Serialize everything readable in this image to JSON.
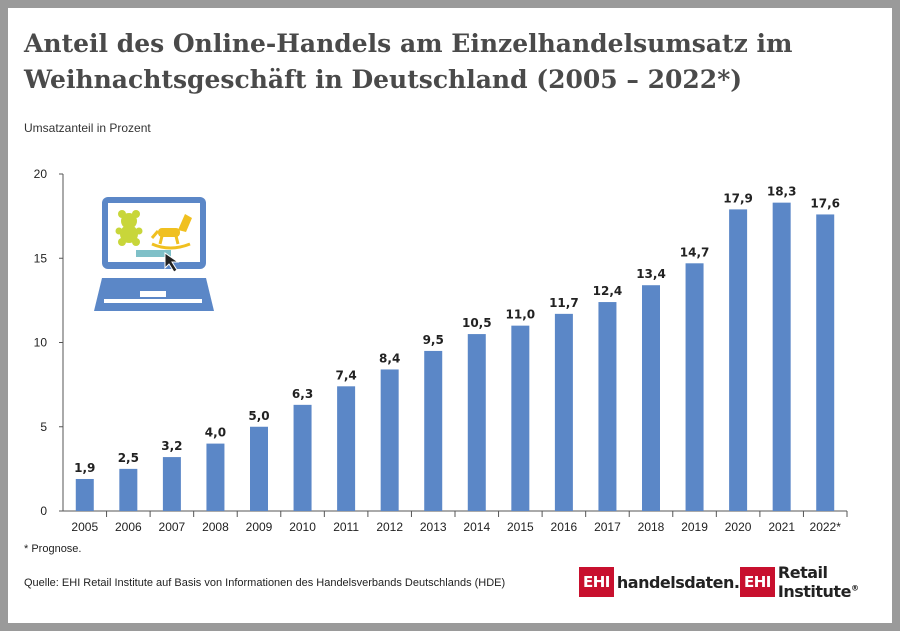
{
  "header": {
    "title": "Anteil des Online-Handels am Einzelhandelsumsatz im Weihnachtsgeschäft in Deutschland  (2005 – 2022*)",
    "unit_label": "Umsatzanteil in Prozent"
  },
  "chart_data": {
    "type": "bar",
    "title": "Anteil des Online-Handels am Einzelhandelsumsatz im Weihnachtsgeschäft in Deutschland  (2005 – 2022*)",
    "xlabel": "",
    "ylabel": "Umsatzanteil in Prozent",
    "categories": [
      "2005",
      "2006",
      "2007",
      "2008",
      "2009",
      "2010",
      "2011",
      "2012",
      "2013",
      "2014",
      "2015",
      "2016",
      "2017",
      "2018",
      "2019",
      "2020",
      "2021",
      "2022*"
    ],
    "values": [
      1.9,
      2.5,
      3.2,
      4.0,
      5.0,
      6.3,
      7.4,
      8.4,
      9.5,
      10.5,
      11.0,
      11.7,
      12.4,
      13.4,
      14.7,
      17.9,
      18.3,
      17.6
    ],
    "value_labels": [
      "1,9",
      "2,5",
      "3,2",
      "4,0",
      "5,0",
      "6,3",
      "7,4",
      "8,4",
      "9,5",
      "10,5",
      "11,0",
      "11,7",
      "12,4",
      "13,4",
      "14,7",
      "17,9",
      "18,3",
      "17,6"
    ],
    "ylim": [
      0,
      20
    ],
    "yticks": [
      0,
      5,
      10,
      15,
      20
    ],
    "ytick_labels": [
      "0",
      "5",
      "10",
      "15",
      "20"
    ],
    "grid": false,
    "legend": "none",
    "bar_color": "#5b87c7"
  },
  "footer": {
    "footnote": "* Prognose.",
    "source": "Quelle: EHI Retail Institute auf Basis von Informationen des Handelsverbands Deutschlands (HDE)",
    "logo1_badge": "EHI",
    "logo1_text": "handelsdaten.de",
    "logo2_badge": "EHI",
    "logo2_text": "Retail Institute",
    "logo2_mark": "®"
  },
  "illustration": {
    "laptop_icon": "laptop-icon",
    "teddy_icon": "teddy-bear-icon",
    "horse_icon": "rocking-horse-icon",
    "cursor_icon": "mouse-cursor-icon",
    "colors": {
      "laptop": "#5b87c7",
      "toys": "#c8d63a",
      "horse": "#f0c020",
      "button": "#7fc0c8"
    }
  }
}
